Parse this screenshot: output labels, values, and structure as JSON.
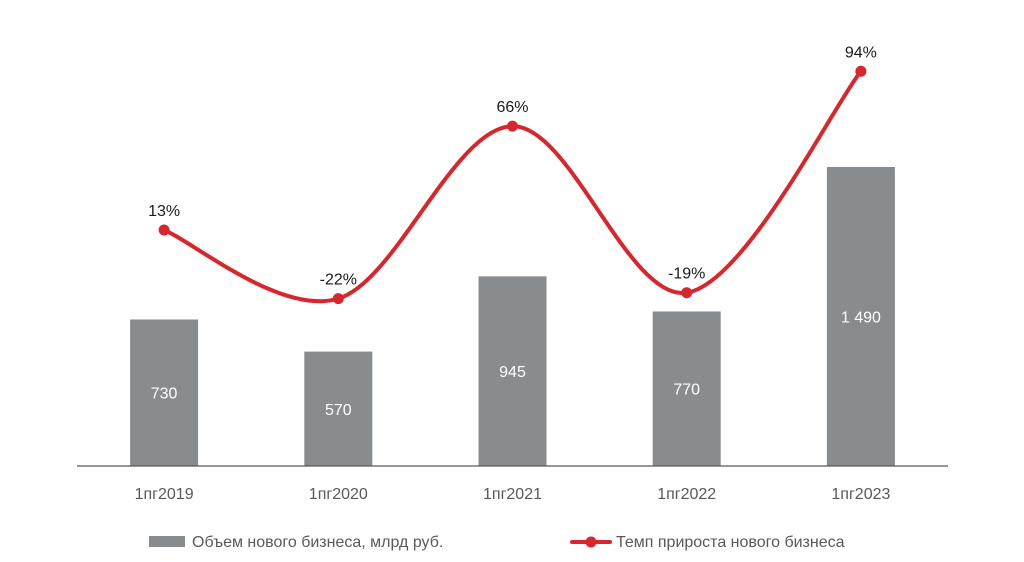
{
  "chart_data": {
    "type": "bar",
    "categories": [
      "1пг2019",
      "1пг2020",
      "1пг2021",
      "1пг2022",
      "1пг2023"
    ],
    "series": [
      {
        "name": "Объем нового бизнеса, млрд руб.",
        "type": "bar",
        "values": [
          730,
          570,
          945,
          770,
          1490
        ],
        "labels": [
          "730",
          "570",
          "945",
          "770",
          "1 490"
        ],
        "color": "#898C8E"
      },
      {
        "name": "Темп прироста нового бизнеса",
        "type": "line",
        "values": [
          13,
          -22,
          66,
          -19,
          94
        ],
        "labels": [
          "13%",
          "-22%",
          "66%",
          "-19%",
          "94%"
        ],
        "color": "#D9262C"
      }
    ],
    "legend": "bottom",
    "grid": false
  }
}
